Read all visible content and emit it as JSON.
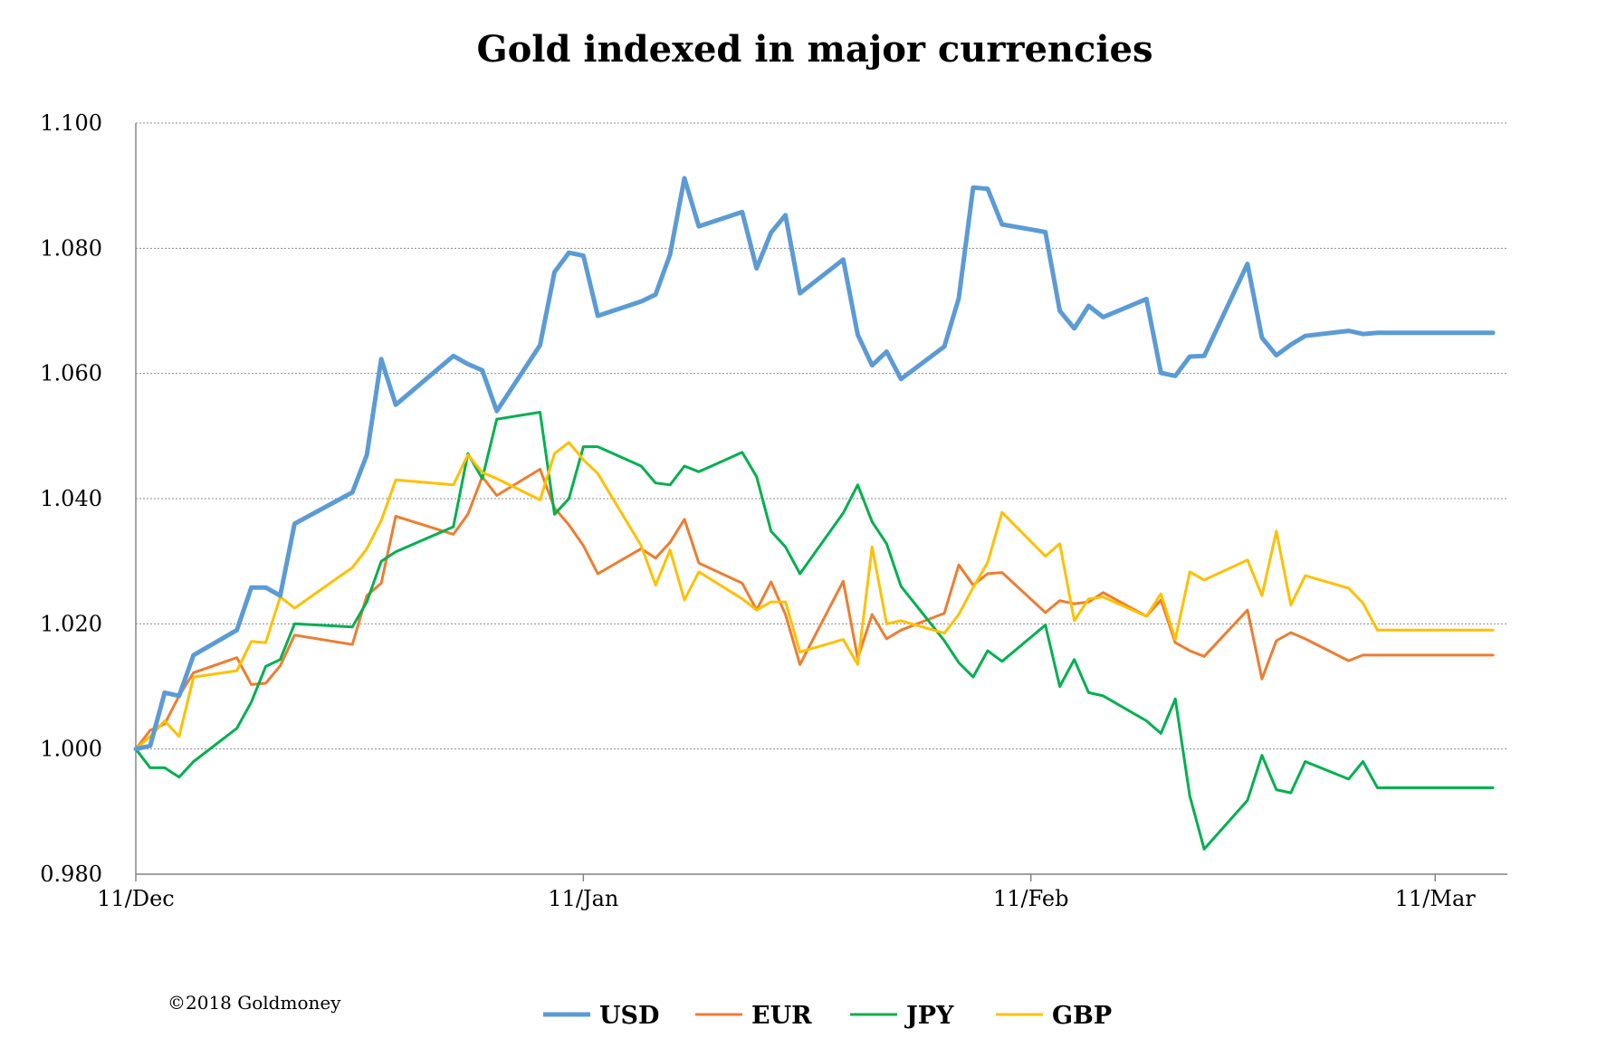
{
  "chart_data": {
    "type": "line",
    "title": "Gold indexed in major currencies",
    "xlabel": "",
    "ylabel": "",
    "x_range": [
      "2017-12-11",
      "2018-03-16"
    ],
    "ylim": [
      0.98,
      1.1
    ],
    "y_ticks": [
      "0.980",
      "1.000",
      "1.020",
      "1.040",
      "1.060",
      "1.080",
      "1.100"
    ],
    "x_ticks": [
      {
        "date": "2017-12-11",
        "label": "11/Dec"
      },
      {
        "date": "2018-01-11",
        "label": "11/Jan"
      },
      {
        "date": "2018-02-11",
        "label": "11/Feb"
      },
      {
        "date": "2018-03-11",
        "label": "11/Mar"
      }
    ],
    "grid": true,
    "legend_position": "bottom",
    "copyright": "©2018 Goldmoney",
    "dates": [
      "2017-12-11",
      "2017-12-12",
      "2017-12-13",
      "2017-12-14",
      "2017-12-15",
      "2017-12-18",
      "2017-12-19",
      "2017-12-20",
      "2017-12-21",
      "2017-12-22",
      "2017-12-26",
      "2017-12-27",
      "2017-12-28",
      "2017-12-29",
      "2018-01-02",
      "2018-01-03",
      "2018-01-04",
      "2018-01-05",
      "2018-01-08",
      "2018-01-09",
      "2018-01-10",
      "2018-01-11",
      "2018-01-12",
      "2018-01-15",
      "2018-01-16",
      "2018-01-17",
      "2018-01-18",
      "2018-01-19",
      "2018-01-22",
      "2018-01-23",
      "2018-01-24",
      "2018-01-25",
      "2018-01-26",
      "2018-01-29",
      "2018-01-30",
      "2018-01-31",
      "2018-02-01",
      "2018-02-02",
      "2018-02-05",
      "2018-02-06",
      "2018-02-07",
      "2018-02-08",
      "2018-02-09",
      "2018-02-12",
      "2018-02-13",
      "2018-02-14",
      "2018-02-15",
      "2018-02-16",
      "2018-02-19",
      "2018-02-20",
      "2018-02-21",
      "2018-02-22",
      "2018-02-23",
      "2018-02-26",
      "2018-02-27",
      "2018-02-28",
      "2018-03-01",
      "2018-03-02",
      "2018-03-05",
      "2018-03-06",
      "2018-03-07",
      "2018-03-08",
      "2018-03-09",
      "2018-03-12",
      "2018-03-13",
      "2018-03-14",
      "2018-03-15"
    ],
    "series": [
      {
        "name": "USD",
        "color": "#5b9bd5",
        "values": [
          1.0,
          1.0005,
          1.009,
          1.0085,
          1.015,
          1.019,
          1.0258,
          1.0258,
          1.0245,
          1.036,
          1.041,
          1.047,
          1.0623,
          1.055,
          1.0628,
          1.0615,
          1.0605,
          1.054,
          1.0645,
          1.0762,
          1.0793,
          1.0788,
          1.0692,
          1.0715,
          1.0726,
          1.079,
          1.0912,
          1.0835,
          1.0858,
          1.0768,
          1.0825,
          1.0853,
          1.0728,
          1.0782,
          1.0662,
          1.0613,
          1.0635,
          1.0591,
          1.0643,
          1.072,
          1.0897,
          1.0895,
          1.0838,
          1.0826,
          1.07,
          1.0672,
          1.0708,
          1.069,
          1.0719,
          1.0601,
          1.0596,
          1.0627,
          1.0628,
          1.0775,
          1.0657,
          1.0629,
          1.0646,
          1.066,
          1.0668,
          1.0663,
          1.0665,
          1.0665,
          1.0665,
          1.0665,
          1.0665,
          1.0665,
          1.0665
        ]
      },
      {
        "name": "EUR",
        "color": "#ed7d31",
        "values": [
          1.0,
          1.003,
          1.004,
          1.0085,
          1.0122,
          1.0146,
          1.0103,
          1.0105,
          1.0133,
          1.0182,
          1.0167,
          1.0245,
          1.0265,
          1.0372,
          1.0343,
          1.0375,
          1.0435,
          1.0405,
          1.0447,
          1.0385,
          1.0358,
          1.0325,
          1.028,
          1.032,
          1.0305,
          1.033,
          1.0367,
          1.0297,
          1.0265,
          1.0222,
          1.0267,
          1.0215,
          1.0135,
          1.0268,
          1.0145,
          1.0215,
          1.0176,
          1.019,
          1.0217,
          1.0294,
          1.0262,
          1.028,
          1.0282,
          1.0218,
          1.0237,
          1.0232,
          1.0235,
          1.025,
          1.0212,
          1.0238,
          1.017,
          1.0157,
          1.0148,
          1.0222,
          1.0112,
          1.0173,
          1.0186,
          1.0176,
          1.0141,
          1.015,
          1.015,
          1.015,
          1.015,
          1.015,
          1.015,
          1.015,
          1.015
        ]
      },
      {
        "name": "JPY",
        "color": "#00b050",
        "values": [
          1.0,
          0.997,
          0.997,
          0.9955,
          0.998,
          1.0033,
          1.0075,
          1.0132,
          1.0143,
          1.02,
          1.0195,
          1.0235,
          1.03,
          1.0315,
          1.0355,
          1.0472,
          1.0432,
          1.0527,
          1.0538,
          1.0375,
          1.04,
          1.0483,
          1.0483,
          1.0452,
          1.0425,
          1.0422,
          1.0452,
          1.0443,
          1.0474,
          1.0435,
          1.0348,
          1.0323,
          1.028,
          1.0377,
          1.0422,
          1.0363,
          1.0328,
          1.026,
          1.0173,
          1.0138,
          1.0115,
          1.0157,
          1.014,
          1.0198,
          1.01,
          1.0143,
          1.009,
          1.0085,
          1.0045,
          1.0025,
          1.008,
          0.9925,
          0.984,
          0.9918,
          0.999,
          0.9935,
          0.993,
          0.998,
          0.9952,
          0.998,
          0.9938,
          0.9938,
          0.9938,
          0.9938,
          0.9938,
          0.9938,
          0.9938
        ]
      },
      {
        "name": "GBP",
        "color": "#ffc000",
        "values": [
          1.0,
          1.002,
          1.0045,
          1.002,
          1.0115,
          1.0125,
          1.0172,
          1.017,
          1.0243,
          1.0225,
          1.029,
          1.032,
          1.0365,
          1.043,
          1.0422,
          1.047,
          1.0442,
          1.0432,
          1.0398,
          1.0472,
          1.049,
          1.0462,
          1.044,
          1.0325,
          1.0262,
          1.0318,
          1.0238,
          1.0283,
          1.024,
          1.0222,
          1.0235,
          1.0235,
          1.0155,
          1.0175,
          1.0135,
          1.0323,
          1.02,
          1.0205,
          1.0185,
          1.0215,
          1.0258,
          1.0298,
          1.0378,
          1.0308,
          1.0328,
          1.0205,
          1.024,
          1.0243,
          1.0212,
          1.0248,
          1.0175,
          1.0283,
          1.027,
          1.0302,
          1.0245,
          1.0348,
          1.023,
          1.0277,
          1.0257,
          1.0233,
          1.019,
          1.019,
          1.019,
          1.019,
          1.019,
          1.019,
          1.019
        ]
      }
    ]
  }
}
